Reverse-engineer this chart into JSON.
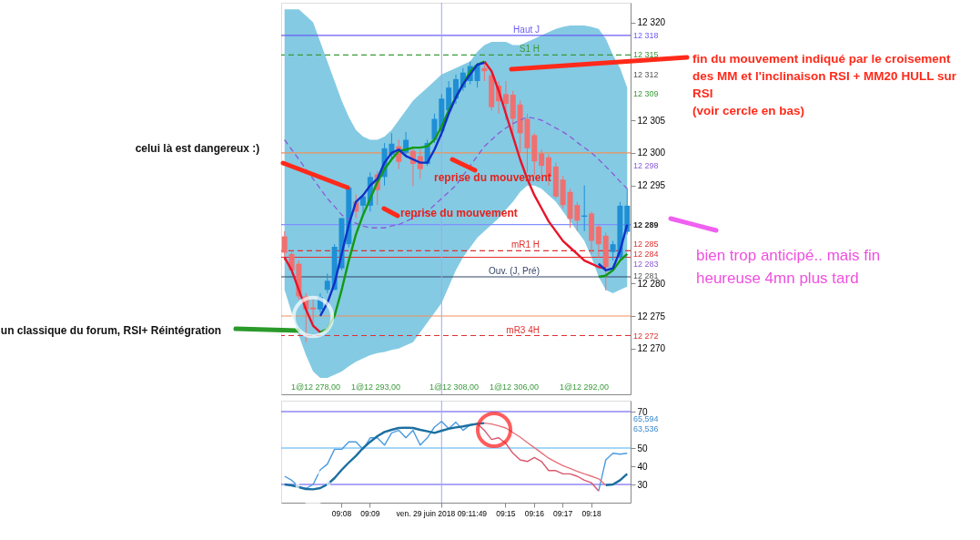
{
  "chart_data": [
    {
      "type": "candlestick",
      "tick_labels": "y",
      "grid": false,
      "categories": [
        null,
        null,
        null,
        null,
        null,
        null,
        null,
        null,
        "09:08",
        null,
        null,
        null,
        "09:09",
        null,
        null,
        null,
        null,
        null,
        null,
        null,
        null,
        null,
        "ven. 29 juin 2018 09:11:49",
        null,
        null,
        null,
        null,
        null,
        null,
        null,
        null,
        "09:15",
        null,
        null,
        null,
        "09:16",
        null,
        null,
        null,
        "09:17",
        null,
        null,
        null,
        "09:18",
        null,
        null,
        null,
        null,
        null
      ],
      "ohlc": [
        [
          12287.2,
          12288,
          12283.5,
          12284.7
        ],
        [
          12284.5,
          12285,
          12281.5,
          12282
        ],
        [
          12283,
          12283.5,
          12277.5,
          12278
        ],
        [
          12278,
          12278.5,
          12271,
          12276
        ],
        [
          12276.3,
          12277.6,
          12274,
          12276
        ],
        [
          12276,
          12278.5,
          12275.5,
          12277.9
        ],
        [
          12279,
          12281.5,
          12278.5,
          12280.4
        ],
        [
          12279,
          12286,
          12279,
          12285.6
        ],
        [
          12282.3,
          12290,
          12282,
          12290
        ],
        [
          12286,
          12295,
          12285.5,
          12294.7
        ],
        [
          12292.5,
          12293.6,
          12290,
          12291
        ],
        [
          12291.9,
          12293.5,
          12290.5,
          12293.3
        ],
        [
          12291.9,
          12297,
          12291,
          12296.3
        ],
        [
          12296.7,
          12297.2,
          12292,
          12294.3
        ],
        [
          12296.3,
          12301.5,
          12295,
          12300.7
        ],
        [
          12299.7,
          12303,
          12299,
          12301.4
        ],
        [
          12301,
          12302,
          12297.5,
          12298.6
        ],
        [
          12300,
          12303.2,
          12299.5,
          12302
        ],
        [
          12300.3,
          12301,
          12294.9,
          12298.3
        ],
        [
          12299.5,
          12300.5,
          12296,
          12297.5
        ],
        [
          12298.3,
          12302,
          12298,
          12301.5
        ],
        [
          12302,
          12306,
          12301.5,
          12305.2
        ],
        [
          12303.3,
          12309,
          12302.5,
          12308.3
        ],
        [
          12306.5,
          12311,
          12306,
          12310
        ],
        [
          12308.3,
          12312,
          12307.5,
          12311.3
        ],
        [
          12310,
          12313,
          12309.5,
          12312.3
        ],
        [
          12311,
          12314,
          12310.5,
          12313.3
        ],
        [
          12311,
          12313.8,
          12310,
          12313.5
        ],
        [
          12313,
          12313.8,
          12311,
          12312.5
        ],
        [
          12311.9,
          12312.5,
          12306.5,
          12307
        ],
        [
          12310.3,
          12311,
          12306,
          12307.9
        ],
        [
          12309,
          12311,
          12305,
          12307.5
        ],
        [
          12308.9,
          12309.5,
          12302.5,
          12305.2
        ],
        [
          12307.4,
          12308,
          12300,
          12303
        ],
        [
          12305.2,
          12306,
          12297,
          12300.7
        ],
        [
          12302.7,
          12303,
          12296.5,
          12298.7
        ],
        [
          12299.9,
          12300.5,
          12296.5,
          12298
        ],
        [
          12299.3,
          12299.8,
          12295,
          12296.3
        ],
        [
          12297.9,
          12298.5,
          12293,
          12293.3
        ],
        [
          12295.9,
          12296.5,
          12291.5,
          12292
        ],
        [
          12294,
          12294.5,
          12288.5,
          12289.9
        ],
        [
          12292,
          12292.5,
          12288,
          12289.6
        ],
        [
          12290.2,
          12295,
          12288,
          12290.4
        ],
        [
          12290.7,
          12291,
          12284.5,
          12286.5
        ],
        [
          12288.7,
          12289,
          12284,
          12286
        ],
        [
          12287.3,
          12287.8,
          12278.9,
          12282.5
        ],
        [
          12284.8,
          12286.5,
          12283.5,
          12286
        ],
        [
          12284,
          12292.5,
          12283.5,
          12291.9
        ],
        [
          12287.9,
          12294.5,
          12287.5,
          12291.9
        ]
      ],
      "colors": [
        "#f07070",
        "#f07070",
        "#f07070",
        "#f07070",
        "#f07070",
        "#1f8fd6",
        "#1f8fd6",
        "#1f8fd6",
        "#1f8fd6",
        "#1f8fd6",
        "#f07070",
        "#1f8fd6",
        "#1f8fd6",
        "#f07070",
        "#1f8fd6",
        "#1f8fd6",
        "#f07070",
        "#1f8fd6",
        "#f07070",
        "#f07070",
        "#1f8fd6",
        "#1f8fd6",
        "#1f8fd6",
        "#1f8fd6",
        "#1f8fd6",
        "#1f8fd6",
        "#1f8fd6",
        "#1f8fd6",
        "#f07070",
        "#f07070",
        "#f07070",
        "#f07070",
        "#f07070",
        "#f07070",
        "#f07070",
        "#f07070",
        "#f07070",
        "#f07070",
        "#f07070",
        "#f07070",
        "#f07070",
        "#f07070",
        "#1f8fd6",
        "#f07070",
        "#f07070",
        "#f07070",
        "#1f8fd6",
        "#1f8fd6",
        "#1f8fd6"
      ],
      "series": [
        {
          "type": "line",
          "line_style": "dashed",
          "color": "#8a5cd6",
          "values": [
            12302,
            12300.5,
            12299,
            12297.5,
            12296,
            12294.5,
            12293,
            12291.8,
            12290.5,
            12289.8,
            12289.2,
            12288.8,
            12288.5,
            12288.5,
            12288.5,
            12288.8,
            12289,
            12289.5,
            12290,
            12290.5,
            12291,
            12292,
            12293,
            12294,
            12295,
            12296.5,
            12298,
            12299.5,
            12301,
            12302,
            12303,
            12303.8,
            12304.5,
            12305,
            12305.5,
            12305.3,
            12305,
            12304.4,
            12303.8,
            12303.2,
            12302.5,
            12301.6,
            12300.8,
            12300,
            12299,
            12297.9,
            12296.8,
            12295.6,
            12294.5
          ],
          "lower": [
            12279,
            12275.5,
            12272,
            12269,
            12266.5,
            12265.5,
            12265.5,
            12266,
            12266.5,
            12267.3,
            12268,
            12268.5,
            12269,
            12269.3,
            12269.5,
            12269.8,
            12270,
            12270.5,
            12271,
            12272.5,
            12274,
            12275.5,
            12277,
            12279.5,
            12282,
            12284,
            12285.5,
            12287,
            12288,
            12289,
            12290,
            12291.3,
            12292.5,
            12294,
            12295,
            12295,
            12294.5,
            12293.5,
            12292.5,
            12291,
            12289.5,
            12288,
            12286.5,
            12284,
            12281,
            12279,
            12278.5,
            12279,
            12279.5
          ],
          "upper": [
            12322,
            12322,
            12322,
            12321,
            12320,
            12317,
            12314,
            12311,
            12308,
            12305.5,
            12303.5,
            12302.5,
            12302,
            12302,
            12302.5,
            12303.5,
            12305,
            12306.5,
            12308,
            12309,
            12310,
            12311,
            12312,
            12312.5,
            12313,
            12313.5,
            12314,
            12315.5,
            12316.5,
            12317,
            12317,
            12317,
            12316.5,
            12316.5,
            12317,
            12317.5,
            12318,
            12318.5,
            12319,
            12319.3,
            12319.5,
            12319.5,
            12319.5,
            12319.3,
            12319,
            12317.5,
            12315,
            12313,
            12310
          ]
        },
        {
          "type": "line",
          "line_style": "solid",
          "color": "#e8142a",
          "values": [
            12284,
            12282,
            12279,
            12276,
            12273.5,
            12272.5,
            null,
            null,
            null,
            null,
            null,
            null,
            null,
            null,
            null,
            null,
            null,
            null,
            null,
            null,
            null,
            null,
            null,
            null,
            null,
            null,
            null,
            null,
            12314,
            12312.5,
            12309.5,
            12306,
            12302.5,
            12299,
            12296,
            12293.5,
            12291.5,
            12289.5,
            12288,
            12286.5,
            12285.5,
            12284.5,
            12283.5,
            12283,
            12282.5,
            12282.3,
            null,
            null,
            null
          ]
        },
        {
          "type": "line",
          "line_style": "solid",
          "color": "#129a12",
          "values": [
            null,
            null,
            null,
            null,
            null,
            12272.5,
            12273,
            12275,
            12279,
            12283.5,
            12287.5,
            12290.5,
            12293,
            12295.5,
            12297.5,
            12299,
            12300.3,
            12300.5,
            12300.8,
            12300.8,
            12301,
            12302,
            12304,
            12306.5,
            12308.5,
            12310.5,
            12312.5,
            12313.5,
            12314,
            null,
            null,
            null,
            null,
            null,
            null,
            null,
            null,
            null,
            null,
            null,
            null,
            null,
            null,
            null,
            12281,
            12281.2,
            12282,
            12283.5,
            12284.5
          ]
        },
        {
          "type": "line",
          "line_style": "solid",
          "color": "#1030c8",
          "values": [
            null,
            null,
            null,
            null,
            null,
            12275,
            12277,
            12280,
            12284.5,
            12289,
            12292.5,
            12293.5,
            12295,
            12296,
            12298.5,
            12300,
            12300.5,
            12299.5,
            12299,
            12298.5,
            12298.5,
            12300.5,
            12303,
            12306,
            12308.5,
            12310.5,
            12312,
            12313.5,
            12313.8,
            null,
            null,
            null,
            null,
            null,
            null,
            null,
            null,
            null,
            null,
            null,
            null,
            null,
            null,
            null,
            12283,
            12282,
            12282.3,
            12285,
            12289
          ]
        }
      ],
      "ylim": [
        12263,
        12323
      ],
      "yticks": [
        {
          "value": 12320,
          "label": "12 320"
        },
        {
          "value": 12305,
          "label": "12 305"
        },
        {
          "value": 12300,
          "label": "12 300"
        },
        {
          "value": 12295,
          "label": "12 295"
        },
        {
          "value": 12280,
          "label": "12 280"
        },
        {
          "value": 12275,
          "label": "12 275"
        },
        {
          "value": 12270,
          "label": "12 270"
        }
      ],
      "ref_lines": [
        {
          "axis": "y",
          "value": 12318,
          "label": "Haut J",
          "color": "#6b5cf5"
        },
        {
          "axis": "y",
          "value": 12315,
          "label": "S1 H",
          "color": "#3a9a3a",
          "line_style": "dashed"
        },
        {
          "axis": "y",
          "value": 12300,
          "color": "#f0905a"
        },
        {
          "axis": "y",
          "value": 12289,
          "color": "#8090ff"
        },
        {
          "axis": "y",
          "value": 12285,
          "label": "mR1 H",
          "color": "#e03030",
          "line_style": "dashed"
        },
        {
          "axis": "y",
          "value": 12284,
          "color": "#e03030"
        },
        {
          "axis": "y",
          "value": 12281,
          "label": "Ouv. (J, Pré)",
          "color": "#334466"
        },
        {
          "axis": "y",
          "value": 12275,
          "color": "#f0905a"
        },
        {
          "axis": "y",
          "value": 12272,
          "label": "mR3 4H",
          "color": "#e03030",
          "line_style": "dashed"
        },
        {
          "axis": "x",
          "value": "ven. 29 juin 2018 09:11:49",
          "color": "#9aaaf0"
        }
      ],
      "annotations": [
        "fin du mouvement indiqué par le croisement\ndes MM et l'inclinaison RSI + MM20 HULL sur\nRSI\n(voir cercle en bas)",
        "celui là est dangereux :)",
        "reprise du mouvement",
        "reprise du mouvement",
        "un classique du forum, RSI+ Réintégration",
        "bien trop anticipé.. mais fin\nheureuse 4mn plus tard",
        "1@12 278,00",
        "1@12 293,00",
        "1@12 308,00",
        "1@12 306,00",
        "1@12 292,00",
        "12 318",
        "12 315",
        "12 312",
        "12 309",
        "12 298",
        "12 289",
        "12 285",
        "12 284",
        "12 283",
        "12 281",
        "12 272"
      ]
    },
    {
      "type": "line",
      "grid": false,
      "categories": [
        null,
        null,
        null,
        null,
        null,
        null,
        null,
        null,
        "09:08",
        null,
        null,
        null,
        "09:09",
        null,
        null,
        null,
        null,
        null,
        null,
        null,
        null,
        null,
        "ven. 29 juin 2018 09:11:49",
        null,
        null,
        null,
        null,
        null,
        null,
        null,
        null,
        "09:15",
        null,
        null,
        null,
        "09:16",
        null,
        null,
        null,
        "09:17",
        null,
        null,
        null,
        "09:18",
        null,
        null,
        null,
        null,
        null
      ],
      "series": [
        {
          "color": "#4a9be0",
          "values": [
            34.5,
            32.3,
            28.6,
            27.8,
            30,
            38,
            41.2,
            49.3,
            49.3,
            53.4,
            53.4,
            49.3,
            55.6,
            55.6,
            51.6,
            58.3,
            59.7,
            55.6,
            59.7,
            51.6,
            55.6,
            61.5,
            64.6,
            60.6,
            64.2,
            59.7,
            62.8,
            63.3,
            null,
            null,
            null,
            null,
            null,
            null,
            null,
            null,
            null,
            null,
            null,
            null,
            null,
            null,
            null,
            null,
            26.4,
            43.5,
            47.1,
            46.6,
            47.1
          ]
        },
        {
          "color": "#d9566c",
          "values": [
            null,
            null,
            null,
            null,
            null,
            null,
            null,
            null,
            null,
            null,
            null,
            null,
            null,
            null,
            null,
            null,
            null,
            null,
            null,
            null,
            null,
            null,
            null,
            null,
            null,
            null,
            null,
            63.3,
            59.7,
            54.7,
            55.6,
            52.5,
            47.1,
            43.5,
            42.6,
            44.8,
            42.6,
            37.6,
            37.6,
            35.8,
            35.8,
            34.5,
            32.3,
            30.9,
            26.4,
            null,
            null,
            null,
            null
          ]
        },
        {
          "color": "#1b6fa0",
          "values": [
            30,
            29.5,
            28.5,
            27.5,
            27.3,
            28,
            30,
            33.5,
            38,
            42,
            45.7,
            50,
            53.4,
            56.5,
            58.8,
            60,
            61,
            61.2,
            61,
            60,
            59.2,
            58.3,
            59.5,
            60.6,
            61.3,
            61.9,
            62.6,
            63.3,
            63.7,
            null,
            null,
            null,
            null,
            null,
            null,
            null,
            null,
            null,
            null,
            null,
            null,
            null,
            null,
            null,
            null,
            29.6,
            30,
            32.3,
            35.8
          ]
        },
        {
          "color": "#e8707a",
          "values": [
            null,
            null,
            null,
            null,
            null,
            null,
            null,
            null,
            null,
            null,
            null,
            null,
            null,
            null,
            null,
            null,
            null,
            null,
            null,
            null,
            null,
            null,
            null,
            null,
            null,
            null,
            null,
            null,
            63.7,
            63.2,
            62.2,
            61,
            58.5,
            56,
            53,
            50.2,
            47.3,
            44.4,
            42.3,
            40.3,
            38.8,
            37.2,
            35.8,
            34.5,
            33.1,
            29.6,
            null,
            null,
            null
          ]
        }
      ],
      "ylim": [
        20,
        76
      ],
      "yticks": [
        30,
        40,
        50,
        70
      ],
      "ref_lines": [
        {
          "axis": "y",
          "value": 70,
          "color": "#5a4ff0"
        },
        {
          "axis": "y",
          "value": 50,
          "color": "#4fb0f0"
        },
        {
          "axis": "y",
          "value": 30,
          "color": "#5a4ff0"
        },
        {
          "axis": "x",
          "value": "ven. 29 juin 2018 09:11:49",
          "color": "#9aaaf0"
        }
      ],
      "annotations": [
        "65,594",
        "63,536"
      ]
    }
  ]
}
